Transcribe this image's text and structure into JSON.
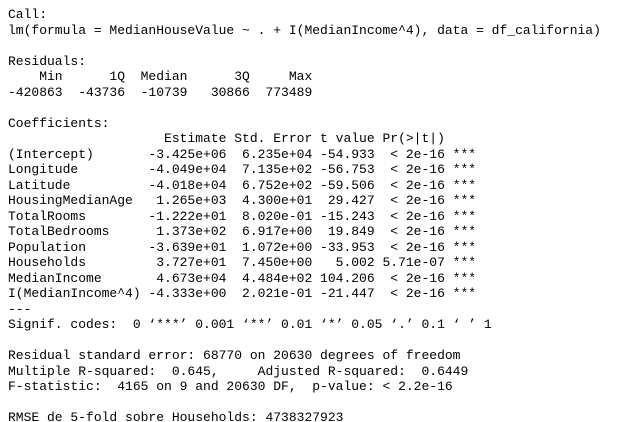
{
  "sections": [
    {
      "lines": [
        "Call:",
        "lm(formula = MedianHouseValue ~ . + I(MedianIncome^4), data = df_california)"
      ]
    },
    {
      "lines": [
        "Residuals:",
        "    Min      1Q  Median      3Q     Max",
        "-420863  -43736  -10739   30866  773489"
      ]
    },
    {
      "lines": [
        "Coefficients:",
        "                    Estimate Std. Error t value Pr(>|t|)",
        "(Intercept)       -3.425e+06  6.235e+04 -54.933  < 2e-16 ***",
        "Longitude         -4.049e+04  7.135e+02 -56.753  < 2e-16 ***",
        "Latitude          -4.018e+04  6.752e+02 -59.506  < 2e-16 ***",
        "HousingMedianAge   1.265e+03  4.300e+01  29.427  < 2e-16 ***",
        "TotalRooms        -1.222e+01  8.020e-01 -15.243  < 2e-16 ***",
        "TotalBedrooms      1.373e+02  6.917e+00  19.849  < 2e-16 ***",
        "Population        -3.639e+01  1.072e+00 -33.953  < 2e-16 ***",
        "Households         3.727e+01  7.450e+00   5.002 5.71e-07 ***",
        "MedianIncome       4.673e+04  4.484e+02 104.206  < 2e-16 ***",
        "I(MedianIncome^4) -4.333e+00  2.021e-01 -21.447  < 2e-16 ***",
        "---",
        "Signif. codes:  0 ‘***’ 0.001 ‘**’ 0.01 ‘*’ 0.05 ‘.’ 0.1 ‘ ’ 1"
      ]
    },
    {
      "lines": [
        "Residual standard error: 68770 on 20630 degrees of freedom",
        "Multiple R-squared:  0.645,\tAdjusted R-squared:  0.6449",
        "F-statistic:  4165 on 9 and 20630 DF,  p-value: < 2.2e-16"
      ]
    },
    {
      "lines": [
        "RMSE de 5-fold sobre Households: 4738327923"
      ]
    }
  ]
}
